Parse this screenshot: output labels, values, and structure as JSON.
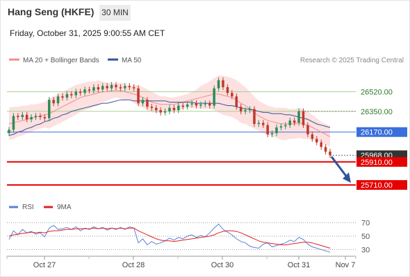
{
  "header": {
    "title": "Hang Seng (HKFE)",
    "interval": "30 MIN",
    "timestamp": "Friday, October 31, 2025 9:00:55 AM CET"
  },
  "colors": {
    "bollinger": "#f08c8c",
    "bollinger_band_fill": "#fde0e0",
    "ma50": "#2f5597",
    "resistance": "#a9d18e",
    "pivot": "#3a6fdc",
    "support": "#e60000",
    "current_price_tag": "#333333",
    "arrow": "#2f5597",
    "candle_up": "#2e8b57",
    "candle_down": "#c0392b",
    "rsi": "#5b7fd9",
    "rsi_ma": "#e02020"
  },
  "chart_data": [
    {
      "type": "candlestick",
      "title": "",
      "legend": [
        {
          "name": "MA 20 + Bollinger Bands",
          "color": "#f08c8c"
        },
        {
          "name": "MA 50",
          "color": "#2f5597"
        }
      ],
      "source": "Research © 2025 Trading Central",
      "x_ticks": [
        "Oct 27",
        "Oct 28",
        "Oct 30",
        "Oct 31",
        "Nov 7"
      ],
      "ylim": [
        25620,
        26740
      ],
      "levels": [
        {
          "label": "26520.00",
          "value": 26520,
          "kind": "resistance"
        },
        {
          "label": "26350.00",
          "value": 26350,
          "kind": "resistance"
        },
        {
          "label": "26170.00",
          "value": 26170,
          "kind": "pivot"
        },
        {
          "label": "25968.00",
          "value": 25968,
          "kind": "last"
        },
        {
          "label": "25910.00",
          "value": 25910,
          "kind": "support"
        },
        {
          "label": "25710.00",
          "value": 25710,
          "kind": "support"
        }
      ],
      "close": [
        26190,
        26310,
        26300,
        26320,
        26280,
        26300,
        26310,
        26300,
        26290,
        26450,
        26420,
        26480,
        26470,
        26500,
        26490,
        26520,
        26510,
        26540,
        26530,
        26560,
        26540,
        26570,
        26550,
        26580,
        26560,
        26550,
        26570,
        26560,
        26550,
        26420,
        26450,
        26390,
        26380,
        26360,
        26340,
        26350,
        26380,
        26360,
        26400,
        26390,
        26410,
        26420,
        26400,
        26410,
        26420,
        26400,
        26550,
        26620,
        26560,
        26510,
        26480,
        26390,
        26350,
        26360,
        26370,
        26240,
        26250,
        26230,
        26150,
        26160,
        26210,
        26220,
        26230,
        26270,
        26250,
        26350,
        26230,
        26150,
        26110,
        26080,
        26040,
        26000,
        25968
      ],
      "ma20": [
        26240,
        26250,
        26260,
        26270,
        26280,
        26290,
        26300,
        26310,
        26320,
        26330,
        26350,
        26370,
        26390,
        26410,
        26430,
        26450,
        26470,
        26480,
        26490,
        26500,
        26510,
        26520,
        26520,
        26530,
        26530,
        26530,
        26520,
        26510,
        26500,
        26490,
        26470,
        26450,
        26430,
        26420,
        26410,
        26410,
        26410,
        26410,
        26420,
        26430,
        26440,
        26450,
        26460,
        26470,
        26480,
        26490,
        26500,
        26500,
        26490,
        26480,
        26470,
        26450,
        26420,
        26400,
        26370,
        26340,
        26310,
        26290,
        26270,
        26260,
        26250,
        26240,
        26240,
        26240,
        26240,
        26250,
        26240,
        26230,
        26210,
        26190,
        26170,
        26150,
        26130
      ],
      "bb_upper": [
        26380,
        26390,
        26390,
        26400,
        26400,
        26410,
        26410,
        26420,
        26430,
        26460,
        26480,
        26500,
        26520,
        26540,
        26560,
        26580,
        26590,
        26600,
        26610,
        26610,
        26620,
        26610,
        26600,
        26600,
        26590,
        26600,
        26590,
        26570,
        26580,
        26580,
        26560,
        26540,
        26520,
        26500,
        26480,
        26480,
        26470,
        26470,
        26480,
        26490,
        26500,
        26520,
        26540,
        26570,
        26590,
        26610,
        26640,
        26660,
        26660,
        26650,
        26640,
        26620,
        26590,
        26560,
        26520,
        26480,
        26440,
        26420,
        26400,
        26390,
        26380,
        26380,
        26380,
        26370,
        26370,
        26380,
        26370,
        26350,
        26320,
        26290,
        26260,
        26240,
        26220
      ],
      "bb_lower": [
        26100,
        26110,
        26130,
        26140,
        26160,
        26170,
        26190,
        26200,
        26210,
        26200,
        26220,
        26240,
        26260,
        26280,
        26300,
        26320,
        26350,
        26360,
        26370,
        26390,
        26400,
        26430,
        26440,
        26460,
        26470,
        26460,
        26450,
        26450,
        26420,
        26400,
        26380,
        26360,
        26340,
        26340,
        26340,
        26340,
        26350,
        26350,
        26360,
        26370,
        26380,
        26380,
        26380,
        26370,
        26370,
        26370,
        26360,
        26340,
        26320,
        26310,
        26300,
        26280,
        26250,
        26240,
        26220,
        26200,
        26180,
        26160,
        26140,
        26130,
        26120,
        26100,
        26100,
        26110,
        26110,
        26120,
        26110,
        26110,
        26100,
        26090,
        26080,
        26060,
        26040
      ],
      "ma50": [
        26140,
        26150,
        26170,
        26180,
        26200,
        26210,
        26230,
        26240,
        26260,
        26270,
        26290,
        26300,
        26320,
        26330,
        26350,
        26360,
        26370,
        26380,
        26390,
        26400,
        26410,
        26420,
        26420,
        26430,
        26440,
        26450,
        26450,
        26450,
        26440,
        26440,
        26440,
        26440,
        26440,
        26440,
        26440,
        26440,
        26430,
        26430,
        26430,
        26430,
        26430,
        26430,
        26420,
        26420,
        26420,
        26420,
        26420,
        26420,
        26410,
        26400,
        26400,
        26390,
        26380,
        26370,
        26370,
        26360,
        26350,
        26340,
        26340,
        26330,
        26330,
        26330,
        26320,
        26320,
        26310,
        26300,
        26290,
        26280,
        26260,
        26240,
        26230,
        26220,
        26210
      ]
    },
    {
      "type": "line",
      "title": "",
      "legend": [
        {
          "name": "RSI",
          "color": "#5b7fd9"
        },
        {
          "name": "9MA",
          "color": "#e02020"
        }
      ],
      "y_ticks": [
        70,
        50,
        30
      ],
      "ylim": [
        20,
        80
      ],
      "series": [
        {
          "name": "RSI",
          "values": [
            45,
            58,
            52,
            60,
            55,
            57,
            53,
            55,
            49,
            62,
            66,
            60,
            61,
            63,
            60,
            64,
            58,
            62,
            60,
            64,
            61,
            63,
            59,
            62,
            60,
            63,
            60,
            64,
            62,
            40,
            46,
            37,
            42,
            38,
            40,
            43,
            47,
            44,
            48,
            46,
            50,
            52,
            48,
            51,
            49,
            55,
            62,
            68,
            60,
            56,
            52,
            46,
            42,
            40,
            35,
            33,
            32,
            38,
            40,
            34,
            36,
            38,
            40,
            44,
            42,
            48,
            45,
            38,
            34,
            32,
            30,
            28,
            26
          ]
        },
        {
          "name": "9MA",
          "values": [
            50,
            52,
            53,
            54,
            55,
            56,
            55,
            56,
            55,
            57,
            58,
            58,
            59,
            60,
            60,
            61,
            61,
            61,
            61,
            62,
            61,
            62,
            61,
            62,
            61,
            62,
            61,
            62,
            62,
            58,
            55,
            52,
            49,
            46,
            44,
            43,
            43,
            42,
            43,
            44,
            45,
            46,
            47,
            48,
            49,
            50,
            52,
            55,
            57,
            58,
            58,
            57,
            55,
            52,
            49,
            46,
            43,
            41,
            40,
            39,
            38,
            37,
            37,
            38,
            39,
            40,
            41,
            41,
            40,
            38,
            36,
            34,
            32
          ]
        }
      ]
    }
  ]
}
